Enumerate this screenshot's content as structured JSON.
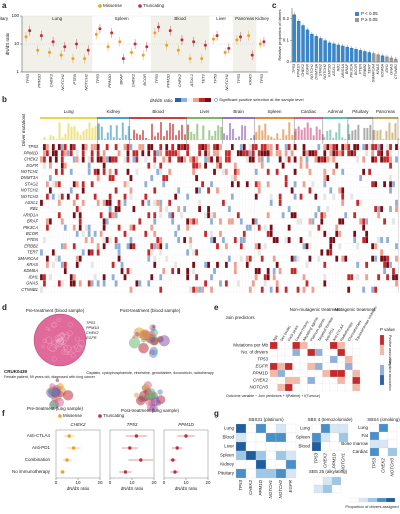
{
  "letters": [
    "a",
    "b",
    "c",
    "d",
    "e",
    "f",
    "g"
  ],
  "chart_data": [
    {
      "type": "dot",
      "ylabel": "dN/dS ratio",
      "ylog": true,
      "ylim": [
        1,
        100
      ],
      "yticks": [
        1,
        10,
        100
      ],
      "tissues": [
        "Lung",
        "Spleen",
        "Blood",
        "Liver",
        "Pancreas",
        "Kidney",
        "Pituitary"
      ],
      "categories": [
        "TP53",
        "PPM1D",
        "CHEK2",
        "NOTCH1",
        "PTEN",
        "NOTCH2",
        "TP53",
        "PPM1D",
        "BRAF",
        "CHEK2",
        "BCOR",
        "TP53",
        "PPM1D",
        "CHEK2",
        "ASXL1",
        "TET2",
        "TP53",
        "NOTCH1",
        "TP53",
        "KRAS",
        "TP53"
      ],
      "series": [
        {
          "name": "Missense",
          "color": "#f0a020",
          "values": [
            18,
            6,
            5,
            4,
            3,
            3,
            22,
            8,
            12,
            5,
            4,
            25,
            9,
            6,
            3,
            3,
            15,
            5,
            14,
            20,
            10
          ]
        },
        {
          "name": "Truncating",
          "color": "#c0303a",
          "values": [
            30,
            20,
            12,
            8,
            10,
            6,
            35,
            25,
            3,
            10,
            8,
            40,
            30,
            14,
            12,
            9,
            20,
            7,
            18,
            4,
            12
          ]
        }
      ]
    },
    {
      "type": "bar",
      "ylabel": "Relative proportion of drivers",
      "ylim": [
        0,
        0.25
      ],
      "yticks": [
        0,
        0.1,
        0.2
      ],
      "categories": [
        "TP53",
        "PPM1D",
        "CHEK2",
        "EGFR",
        "NOTCH1",
        "DNMT3A",
        "STAG2",
        "NOTCH2",
        "KMT2D",
        "ASXL1",
        "RB1",
        "ARID1A",
        "BRAF",
        "PIK3CA",
        "BCOR",
        "PTEN",
        "ERBB2",
        "TERT",
        "SMARCA4",
        "KRAS",
        "KDM6A",
        "IDH1",
        "GNAS",
        "CTNNB1"
      ],
      "values": [
        0.22,
        0.19,
        0.17,
        0.15,
        0.13,
        0.12,
        0.11,
        0.1,
        0.09,
        0.085,
        0.08,
        0.075,
        0.07,
        0.065,
        0.06,
        0.055,
        0.05,
        0.045,
        0.04,
        0.035,
        0.03,
        0.025,
        0.02,
        0.015
      ],
      "colors": [
        "#3a86c8",
        "#3a86c8",
        "#3a86c8",
        "#3a86c8",
        "#3a86c8",
        "#3a86c8",
        "#3a86c8",
        "#3a86c8",
        "#3a86c8",
        "#3a86c8",
        "#3a86c8",
        "#3a86c8",
        "#3a86c8",
        "#3a86c8",
        "#3a86c8",
        "#3a86c8",
        "#3a86c8",
        "#3a86c8",
        "#999999",
        "#999999",
        "#3a86c8",
        "#999999",
        "#999999",
        "#999999"
      ],
      "legend": [
        {
          "name": "P < 0.05",
          "color": "#3a86c8"
        },
        {
          "name": "P ≥ 0.05",
          "color": "#999999"
        }
      ]
    },
    {
      "type": "forest",
      "xlabel": "dN/dS ratio",
      "xlim": [
        0,
        20
      ],
      "xticks": [
        0,
        10,
        20
      ],
      "categories": [
        "Anti-CTLA4",
        "Anti-PD1",
        "Combination",
        "No immunotherapy"
      ],
      "series": [
        {
          "name": "CHEK2",
          "color": "#f0a020",
          "values": [
            6,
            8,
            5,
            3
          ]
        },
        {
          "name": "TP53",
          "color": "#c0303a",
          "values": [
            12,
            9,
            14,
            7
          ]
        },
        {
          "name": "PPM1D",
          "color": "#c0303a",
          "values": [
            10,
            6,
            4,
            5
          ]
        }
      ]
    }
  ],
  "panel_b": {
    "tissues": [
      "Lung",
      "Kidney",
      "Blood",
      "Liver",
      "Brain",
      "Spleen",
      "Cardiac",
      "Adrenal",
      "Pituitary",
      "Pancreas"
    ],
    "ylabel": "Driver mutations",
    "legend_title": "dN/dS ratio",
    "legend_sig": "Significant positive selection at the sample level",
    "genes": [
      "TP53",
      "PPM1D",
      "CHEK2",
      "EGFR",
      "NOTCH1",
      "DNMT3A",
      "STAG2",
      "NOTCH2",
      "NOTCH3",
      "ASXL1",
      "RB1",
      "ARID1A",
      "BRAF",
      "PIK3CA",
      "BCOR",
      "PTEN",
      "ERBB2",
      "TERT",
      "SMARCA4",
      "KRAS",
      "KDM6A",
      "IDH1",
      "GNAS",
      "CTNNB1"
    ]
  },
  "panel_d": {
    "pre_blood": "Pre-treatment (blood sample)",
    "post_blood": "Post-treatment (blood sample)",
    "pre_lung": "Pre-treatment (lung sample)",
    "post_lung": "Post-treatment (lung sample)",
    "patient": "CRUK0439",
    "patient_note": "Female patient, 59 years old, diagnosed with lung cancer",
    "treatment": "Cisplatin, cyclophosphamide, vincristine, gemcitabine, doxorubicin, radiotherapy",
    "genes": [
      "TP53",
      "PPM1D",
      "CHEK2",
      "EGFR"
    ]
  },
  "panel_e": {
    "rows": [
      "Mutations per Mb",
      "No. of drivers",
      "TP53",
      "EGFR",
      "PPM1D",
      "CHEK2",
      "NOTCH3"
    ],
    "cols": [
      "Age",
      "Sex (male)",
      "Pack years",
      "Cancer history",
      "Alkylating agents",
      "Platinum agents",
      "Targeted therapy",
      "Anti-PD1",
      "Anti-CTLA4",
      "Radiotherapy",
      "Chemotherapy",
      "Topoisomerase inhibitors"
    ],
    "groups": [
      "Join predictors",
      "Non-mutagenic treatment",
      "Mutagenic treatment"
    ],
    "legend": "P value",
    "pos": "Positive association",
    "neg": "Negative association",
    "formula": "Outcome variable ~ Join predictors + f(Patient) + f(Tumour)"
  },
  "panel_f": {
    "legend": [
      "Missense",
      "Truncating"
    ]
  },
  "panel_g": {
    "titles": [
      "SBS31 (platinum)",
      "SBS 4 (temozolomide)",
      "SBS4 (smoking)"
    ],
    "rows1": [
      "Lung",
      "Blood",
      "Liver",
      "Spleen",
      "Kidney",
      "Pituitary"
    ],
    "cols1": [
      "TP53",
      "CHEK2",
      "PPM1D",
      "NOTCH1",
      "NOTCH2",
      "EGFR"
    ],
    "rows2": [
      "Lung",
      "Spleen",
      "Blood"
    ],
    "cols2": [
      "TP53",
      "CHEK2",
      "PPM1D",
      "NOTCH1"
    ],
    "rows3": [
      "Lung",
      "Fat",
      "Bone marrow",
      "Cardiac"
    ],
    "cols3": [
      "TP53",
      "CHEK2",
      "NOTCH3"
    ],
    "title4": "SBS 25 (alkylating)",
    "legend": "Proportion of drivers assigned"
  }
}
